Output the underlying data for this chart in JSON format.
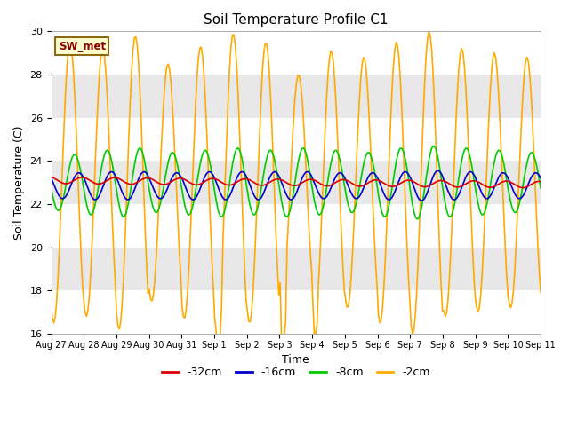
{
  "title": "Soil Temperature Profile C1",
  "xlabel": "Time",
  "ylabel": "Soil Temperature (C)",
  "ylim": [
    16,
    30
  ],
  "yticks": [
    16,
    18,
    20,
    22,
    24,
    26,
    28,
    30
  ],
  "legend_label": "SW_met",
  "series_labels": [
    "-32cm",
    "-16cm",
    "-8cm",
    "-2cm"
  ],
  "series_colors": [
    "#dd0000",
    "#0000cc",
    "#00cc00",
    "#ffaa00"
  ],
  "background_color": "#f0f0f0",
  "band_colors": [
    "#ffffff",
    "#e8e8e8"
  ],
  "x_tick_labels": [
    "Aug 27",
    "Aug 28",
    "Aug 29",
    "Aug 30",
    "Aug 31",
    "Sep 1",
    "Sep 2",
    "Sep 3",
    "Sep 4",
    "Sep 5",
    "Sep 6",
    "Sep 7",
    "Sep 8",
    "Sep 9",
    "Sep 10",
    "Sep 11"
  ],
  "num_days": 16
}
